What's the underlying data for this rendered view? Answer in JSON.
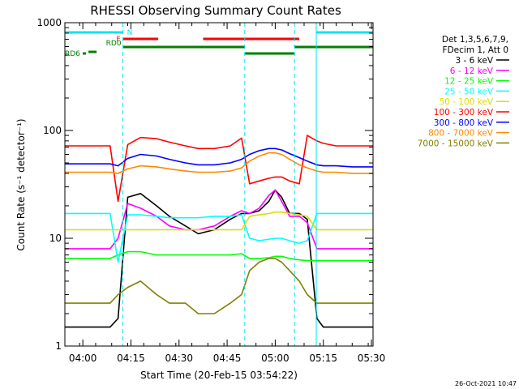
{
  "chart_data": {
    "type": "line",
    "title": "RHESSI Observing Summary Count Rates",
    "xlabel": "Start Time (20-Feb-15 03:54:22)",
    "ylabel": "Count Rate (s⁻¹ detector⁻¹)",
    "x_unit": "minutes after 03:54",
    "xlim": [
      0.4,
      96.5
    ],
    "ylim": [
      1,
      1000
    ],
    "yscale": "log",
    "xticks": [
      {
        "x": 6,
        "label": "04:00"
      },
      {
        "x": 21,
        "label": "04:15"
      },
      {
        "x": 36,
        "label": "04:30"
      },
      {
        "x": 51,
        "label": "04:45"
      },
      {
        "x": 66,
        "label": "05:00"
      },
      {
        "x": 81,
        "label": "05:15"
      },
      {
        "x": 96,
        "label": "05:30"
      }
    ],
    "yticks": [
      {
        "y": 1,
        "label": "1"
      },
      {
        "y": 10,
        "label": "10"
      },
      {
        "y": 100,
        "label": "100"
      },
      {
        "y": 1000,
        "label": "1000"
      }
    ],
    "legend_header": [
      "Det 1,3,5,6,7,9,",
      "FDecim 1, Att 0"
    ],
    "legend_position": "right",
    "series": [
      {
        "name": "3 - 6 keV",
        "color": "#000000",
        "x": [
          0.4,
          6,
          10,
          14.5,
          17,
          20,
          24,
          29,
          33,
          38,
          42,
          47,
          52,
          55.5,
          58,
          61,
          64,
          66,
          68,
          70.5,
          73.5,
          76,
          79,
          81,
          85,
          90,
          96.5
        ],
        "y": [
          1.5,
          1.5,
          1.5,
          1.5,
          1.8,
          24,
          26,
          20,
          16,
          13,
          11,
          12,
          15,
          17,
          17,
          18,
          22,
          28,
          24,
          17,
          17,
          15,
          1.8,
          1.5,
          1.5,
          1.5,
          1.5
        ]
      },
      {
        "name": "6 - 12 keV",
        "color": "#ff00ff",
        "x": [
          0.4,
          6,
          10,
          14.5,
          17,
          20,
          24,
          29,
          33,
          38,
          42,
          47,
          52,
          55.5,
          58,
          61,
          64,
          66,
          68,
          70.5,
          73.5,
          76,
          79,
          81,
          85,
          90,
          96.5
        ],
        "y": [
          8,
          8,
          8,
          8,
          10,
          21,
          19,
          16,
          13,
          12,
          12,
          13,
          16,
          18,
          17,
          19,
          25,
          28,
          22,
          16,
          16,
          14,
          8,
          8,
          8,
          8,
          8
        ]
      },
      {
        "name": "12 - 25 keV",
        "color": "#00ff00",
        "x": [
          0.4,
          6,
          10,
          14.5,
          17,
          20,
          24,
          29,
          33,
          38,
          42,
          47,
          52,
          55.5,
          58,
          61,
          64,
          66,
          68,
          70.5,
          73.5,
          76,
          79,
          81,
          85,
          90,
          96.5
        ],
        "y": [
          6.5,
          6.5,
          6.5,
          6.5,
          7,
          7.5,
          7.5,
          7,
          7,
          7,
          7,
          7,
          7,
          7.2,
          6.5,
          6.5,
          6.6,
          6.8,
          6.8,
          6.5,
          6.3,
          6.2,
          6.2,
          6.2,
          6.2,
          6.2,
          6.2
        ]
      },
      {
        "name": "25 - 50 keV",
        "color": "#00ffff",
        "x": [
          0.4,
          6,
          10,
          14.5,
          17,
          20,
          24,
          29,
          33,
          38,
          42,
          47,
          52,
          55.5,
          58,
          61,
          64,
          66,
          68,
          70.5,
          73.5,
          76,
          79,
          81,
          85,
          90,
          96.5
        ],
        "y": [
          17,
          17,
          17,
          17,
          6,
          16.5,
          16.5,
          16,
          15.5,
          15.5,
          15.5,
          16,
          16,
          16.5,
          10,
          9.5,
          9.8,
          10,
          10,
          9.5,
          9,
          9.5,
          17,
          17,
          17,
          17,
          17
        ]
      },
      {
        "name": "50 - 100 keV",
        "color": "#dddd00",
        "x": [
          0.4,
          6,
          10,
          14.5,
          17,
          20,
          24,
          29,
          33,
          38,
          42,
          47,
          52,
          55.5,
          58,
          61,
          64,
          66,
          68,
          70.5,
          73.5,
          76,
          79,
          81,
          85,
          90,
          96.5
        ],
        "y": [
          12,
          12,
          12,
          12,
          12,
          12,
          12,
          12,
          12,
          12,
          12,
          12,
          12,
          12,
          16,
          16.5,
          17,
          17.5,
          17.5,
          17,
          16.5,
          16,
          12,
          12,
          12,
          12,
          12
        ]
      },
      {
        "name": "100 - 300 keV",
        "color": "#ff0000",
        "x": [
          0.4,
          6,
          10,
          14.5,
          17,
          20,
          24,
          29,
          33,
          38,
          42,
          47,
          52,
          55.5,
          58,
          61,
          64,
          66,
          68,
          70.5,
          73.5,
          76,
          79,
          81,
          85,
          90,
          96.5
        ],
        "y": [
          72,
          72,
          72,
          72,
          22,
          74,
          86,
          84,
          78,
          72,
          68,
          68,
          72,
          85,
          32,
          34,
          36,
          37,
          37,
          34,
          32,
          90,
          80,
          76,
          72,
          72,
          72
        ]
      },
      {
        "name": "300 - 800 keV",
        "color": "#0000ff",
        "x": [
          0.4,
          6,
          10,
          14.5,
          17,
          20,
          24,
          29,
          33,
          38,
          42,
          47,
          52,
          55.5,
          58,
          61,
          64,
          66,
          68,
          70.5,
          73.5,
          76,
          79,
          81,
          85,
          90,
          96.5
        ],
        "y": [
          49,
          49,
          49,
          49,
          47,
          55,
          60,
          58,
          54,
          50,
          48,
          48,
          50,
          54,
          60,
          65,
          68,
          68,
          66,
          61,
          56,
          52,
          48,
          47,
          47,
          46,
          46
        ]
      },
      {
        "name": "800 - 7000 keV",
        "color": "#ff8800",
        "x": [
          0.4,
          6,
          10,
          14.5,
          17,
          20,
          24,
          29,
          33,
          38,
          42,
          47,
          52,
          55.5,
          58,
          61,
          64,
          66,
          68,
          70.5,
          73.5,
          76,
          79,
          81,
          85,
          90,
          96.5
        ],
        "y": [
          41,
          41,
          41,
          41,
          40,
          44,
          47,
          46,
          44,
          42,
          41,
          41,
          42,
          45,
          52,
          58,
          62,
          62,
          60,
          54,
          48,
          45,
          42,
          41,
          41,
          40,
          40
        ]
      },
      {
        "name": "7000 - 15000 keV",
        "color": "#808000",
        "x": [
          0.4,
          6,
          10,
          14.5,
          17,
          20,
          24,
          29,
          33,
          38,
          42,
          47,
          52,
          55.5,
          58,
          61,
          64,
          66,
          68,
          70.5,
          73.5,
          76,
          79,
          81,
          85,
          90,
          96.5
        ],
        "y": [
          2.5,
          2.5,
          2.5,
          2.5,
          3,
          3.5,
          4,
          3,
          2.5,
          2.5,
          2,
          2,
          2.5,
          3,
          5,
          6,
          6.5,
          6.5,
          6,
          5,
          4,
          3,
          2.5,
          2.5,
          2.5,
          2.5,
          2.5
        ]
      }
    ],
    "attenuator_flags": [
      {
        "label": "N",
        "color": "#00e5ee",
        "segments": [
          [
            0.4,
            18.5
          ],
          [
            78.8,
            96.5
          ]
        ]
      },
      {
        "label": "F",
        "color": "#ff0000",
        "segments": [
          [
            18.5,
            29.5
          ],
          [
            43.5,
            73.5
          ]
        ]
      },
      {
        "label": "RD0",
        "color": "#008000",
        "segments": [
          [
            18.5,
            56.5
          ],
          [
            72,
            96.5
          ]
        ]
      },
      {
        "label": "RD6",
        "color": "#008000",
        "segments": [
          [
            0.4,
            7
          ],
          [
            7,
            10.3
          ],
          [
            56.5,
            72
          ]
        ]
      }
    ],
    "saa_boundaries": [
      {
        "x": 0.4,
        "style": "solid"
      },
      {
        "x": 18.5,
        "style": "dashed"
      },
      {
        "x": 56.5,
        "style": "dashed"
      },
      {
        "x": 72,
        "style": "dashed"
      },
      {
        "x": 78.8,
        "style": "solid"
      },
      {
        "x": 96.5,
        "style": "dashed"
      }
    ],
    "timestamp": "26-Oct-2021 10:47"
  }
}
